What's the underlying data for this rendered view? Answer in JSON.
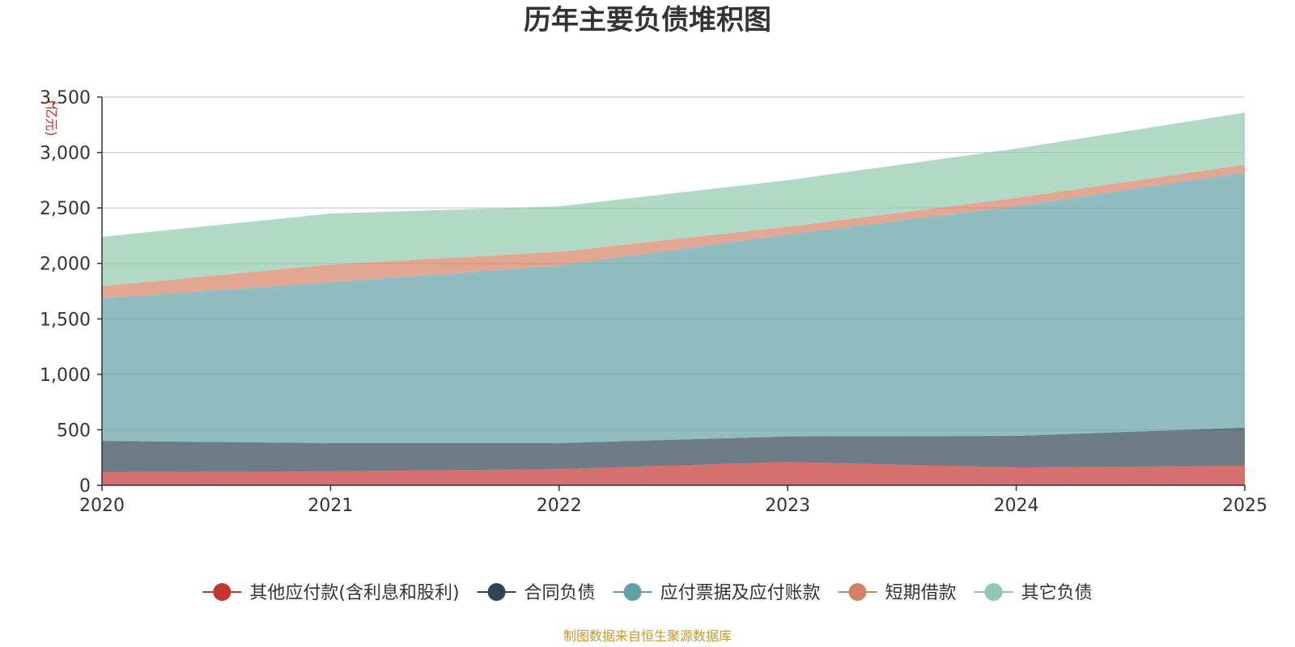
{
  "chart_data": {
    "type": "area",
    "stacked": true,
    "title": "历年主要负债堆积图",
    "ylabel": "(亿元)",
    "xlabel": "",
    "categories": [
      "2020",
      "2021",
      "2022",
      "2023",
      "2024",
      "2025"
    ],
    "ylim": [
      0,
      3500
    ],
    "yticks": [
      0,
      500,
      1000,
      1500,
      2000,
      2500,
      3000,
      3500
    ],
    "ytick_labels": [
      "0",
      "500",
      "1,000",
      "1,500",
      "2,000",
      "2,500",
      "3,000",
      "3,500"
    ],
    "grid": true,
    "legend_position": "bottom-center",
    "series": [
      {
        "name": "其他应付款(含利息和股利)",
        "color": "#c23531",
        "values": [
          120,
          125,
          145,
          210,
          160,
          175
        ]
      },
      {
        "name": "合同负债",
        "color": "#2f4554",
        "values": [
          280,
          255,
          235,
          230,
          285,
          345
        ]
      },
      {
        "name": "应付票据及应付账款",
        "color": "#61a0a8",
        "values": [
          1285,
          1450,
          1600,
          1820,
          2070,
          2300
        ]
      },
      {
        "name": "短期借款",
        "color": "#d48265",
        "values": [
          110,
          160,
          125,
          70,
          75,
          70
        ]
      },
      {
        "name": "其它负债",
        "color": "#91c7ae",
        "values": [
          445,
          460,
          410,
          420,
          445,
          470
        ]
      }
    ],
    "source": "制图数据来自恒生聚源数据库"
  }
}
